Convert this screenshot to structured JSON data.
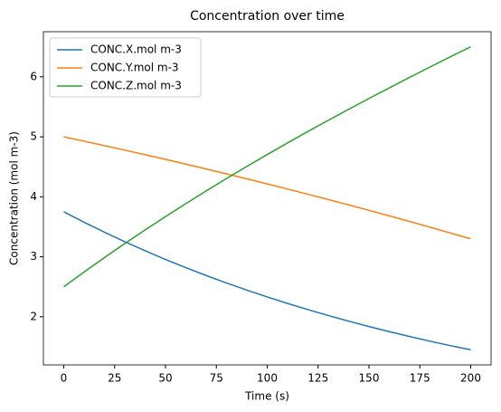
{
  "chart_data": {
    "type": "line",
    "title": "Concentration over time",
    "xlabel": "Time (s)",
    "ylabel": "Concentration (mol m-3)",
    "x": [
      0,
      10,
      20,
      30,
      40,
      50,
      60,
      70,
      80,
      90,
      100,
      110,
      120,
      130,
      140,
      150,
      160,
      170,
      180,
      190,
      200
    ],
    "series": [
      {
        "name": "CONC.X.mol m-3",
        "color": "#1f77b4",
        "values": [
          3.75,
          3.576,
          3.41,
          3.251,
          3.1,
          2.956,
          2.819,
          2.688,
          2.563,
          2.444,
          2.331,
          2.222,
          2.119,
          2.021,
          1.927,
          1.837,
          1.752,
          1.671,
          1.593,
          1.519,
          1.45
        ]
      },
      {
        "name": "CONC.Y.mol m-3",
        "color": "#ff7f0e",
        "values": [
          5.0,
          4.927,
          4.853,
          4.778,
          4.702,
          4.624,
          4.545,
          4.464,
          4.382,
          4.299,
          4.215,
          4.129,
          4.042,
          3.954,
          3.865,
          3.774,
          3.682,
          3.588,
          3.493,
          3.397,
          3.3
        ]
      },
      {
        "name": "CONC.Z.mol m-3",
        "color": "#2ca02c",
        "values": [
          2.5,
          2.747,
          2.987,
          3.221,
          3.448,
          3.67,
          3.886,
          4.098,
          4.305,
          4.507,
          4.704,
          4.899,
          5.089,
          5.275,
          5.458,
          5.639,
          5.816,
          5.991,
          6.164,
          6.334,
          6.5
        ]
      }
    ],
    "xlim": [
      -10,
      210
    ],
    "xticks": [
      0,
      25,
      50,
      75,
      100,
      125,
      150,
      175,
      200
    ],
    "ylim": [
      1.1975,
      6.7525
    ],
    "yticks": [
      2,
      3,
      4,
      5,
      6
    ],
    "legend": "upper left",
    "grid": false
  }
}
